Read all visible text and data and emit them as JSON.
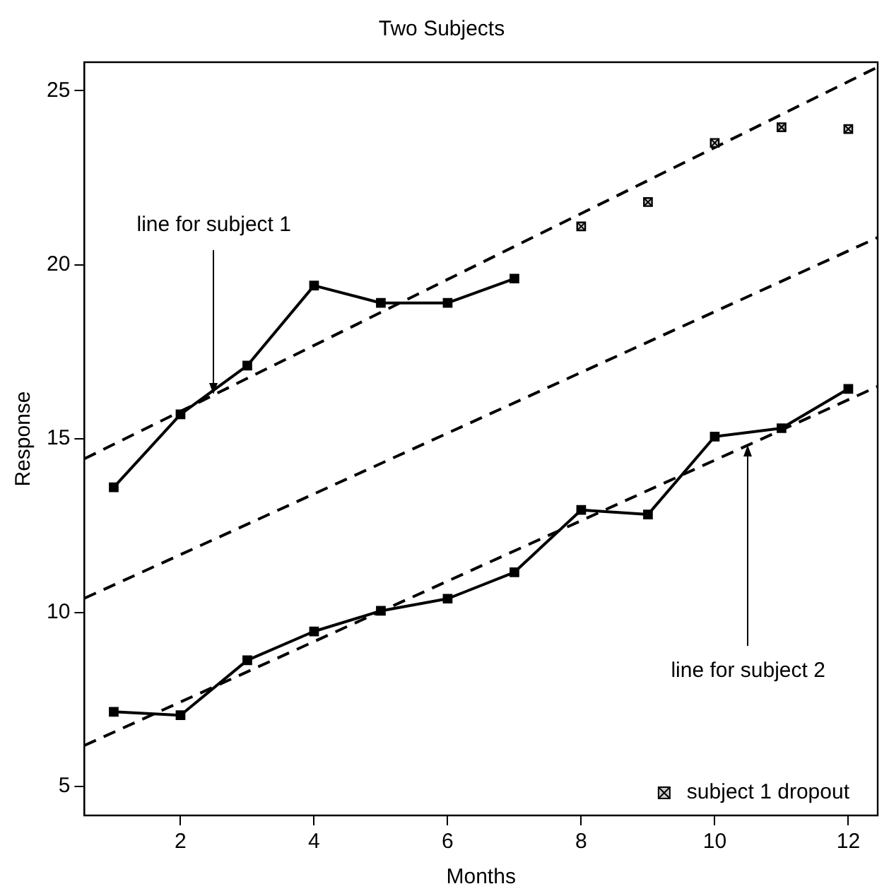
{
  "chart_data": {
    "type": "line",
    "title": "Two Subjects",
    "xlabel": "Months",
    "ylabel": "Response",
    "xlim": [
      0.56,
      12.44
    ],
    "ylim": [
      4.17,
      25.82
    ],
    "xticks": [
      2,
      4,
      6,
      8,
      10,
      12
    ],
    "yticks": [
      5,
      10,
      15,
      20,
      25
    ],
    "grid": false,
    "legend": "bottom right",
    "series": [
      {
        "type": "line",
        "color": "#000000",
        "marker": "square",
        "line_style": "solid",
        "x": [
          1,
          2,
          3,
          4,
          5,
          6,
          7
        ],
        "values": [
          13.6,
          15.7,
          17.1,
          19.4,
          18.9,
          18.9,
          19.6
        ]
      },
      {
        "type": "scatter",
        "name": "subject 1 dropout",
        "color": "#000000",
        "marker": "square",
        "x": [
          8,
          9,
          10,
          11,
          12
        ],
        "values": [
          21.1,
          21.8,
          23.5,
          23.95,
          23.9
        ]
      },
      {
        "type": "line",
        "color": "#000000",
        "marker": "square",
        "line_style": "solid",
        "x": [
          1,
          2,
          3,
          4,
          5,
          6,
          7,
          8,
          9,
          10,
          11,
          12
        ],
        "values": [
          7.15,
          7.05,
          8.63,
          9.46,
          10.05,
          10.4,
          11.16,
          12.95,
          12.82,
          15.06,
          15.3,
          16.43
        ]
      },
      {
        "type": "line",
        "color": "#000000",
        "marker": "none",
        "line_style": "dashed",
        "x": [
          0.56,
          12.44
        ],
        "values": [
          14.42,
          25.68
        ]
      },
      {
        "type": "line",
        "color": "#000000",
        "marker": "none",
        "line_style": "dashed",
        "x": [
          0.56,
          12.44
        ],
        "values": [
          10.41,
          20.78
        ]
      },
      {
        "type": "line",
        "color": "#000000",
        "marker": "none",
        "line_style": "dashed",
        "x": [
          0.56,
          12.44
        ],
        "values": [
          6.18,
          16.5
        ]
      }
    ],
    "annotations": [
      {
        "text": "line for subject 1",
        "x": 2.5,
        "y": 16.26
      },
      {
        "text": "line for subject 2",
        "x": 10.5,
        "y": 14.82
      }
    ]
  }
}
